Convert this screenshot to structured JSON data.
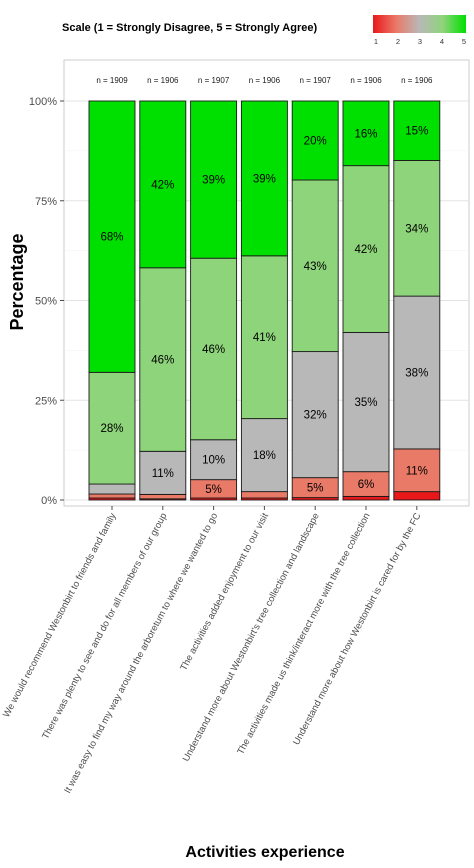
{
  "chart_data": {
    "type": "bar",
    "stacked": true,
    "legend": {
      "title": "Scale (1 = Strongly Disagree, 5 = Strongly Agree)",
      "ticks": [
        "1",
        "2",
        "3",
        "4",
        "5"
      ],
      "placement": "top-right"
    },
    "colors": [
      "#e8181a",
      "#ea7a68",
      "#b8b8b8",
      "#8ed47a",
      "#00e000"
    ],
    "xlabel": "Activities experience",
    "ylabel": "Percentage",
    "ylim": [
      0,
      100
    ],
    "yticks": [
      "0%",
      "25%",
      "50%",
      "75%",
      "100%"
    ],
    "categories": [
      "We would recommend Westonbirt to friends and family",
      "There was plenty to see and do for all members of our group",
      "It was easy to find my way around the arboretum to where we wanted to go",
      "The activities added enjoyment to our visit",
      "Understand more about Westonbirt's tree collection and landscape",
      "The activities made us think/interact more with the tree collection",
      "Understand more about how Westonbirt is cared for by the FC"
    ],
    "n_labels": [
      "n = 1909",
      "n = 1906",
      "n = 1907",
      "n = 1906",
      "n = 1907",
      "n = 1906",
      "n = 1906"
    ],
    "series": [
      {
        "name": "1",
        "values": [
          0.5,
          0.3,
          0.5,
          0.5,
          0.6,
          0.9,
          2.1
        ]
      },
      {
        "name": "2",
        "values": [
          1.0,
          1.1,
          4.6,
          1.6,
          5.0,
          6.2,
          10.7
        ]
      },
      {
        "name": "3",
        "values": [
          2.5,
          10.8,
          10.0,
          18.3,
          31.6,
          34.9,
          38.3
        ]
      },
      {
        "name": "4",
        "values": [
          28.0,
          46.0,
          45.5,
          40.8,
          43.0,
          41.8,
          34.0
        ]
      },
      {
        "name": "5",
        "values": [
          68.0,
          41.8,
          39.4,
          38.8,
          19.8,
          16.2,
          14.9
        ]
      }
    ],
    "segment_labels": [
      [
        "",
        "",
        "",
        "28%",
        "68%"
      ],
      [
        "",
        "",
        "11%",
        "46%",
        "42%"
      ],
      [
        "",
        "5%",
        "10%",
        "46%",
        "39%"
      ],
      [
        "",
        "",
        "18%",
        "41%",
        "39%"
      ],
      [
        "",
        "5%",
        "32%",
        "43%",
        "20%"
      ],
      [
        "",
        "6%",
        "35%",
        "42%",
        "16%"
      ],
      [
        "",
        "11%",
        "38%",
        "34%",
        "15%"
      ]
    ],
    "grid": true
  }
}
